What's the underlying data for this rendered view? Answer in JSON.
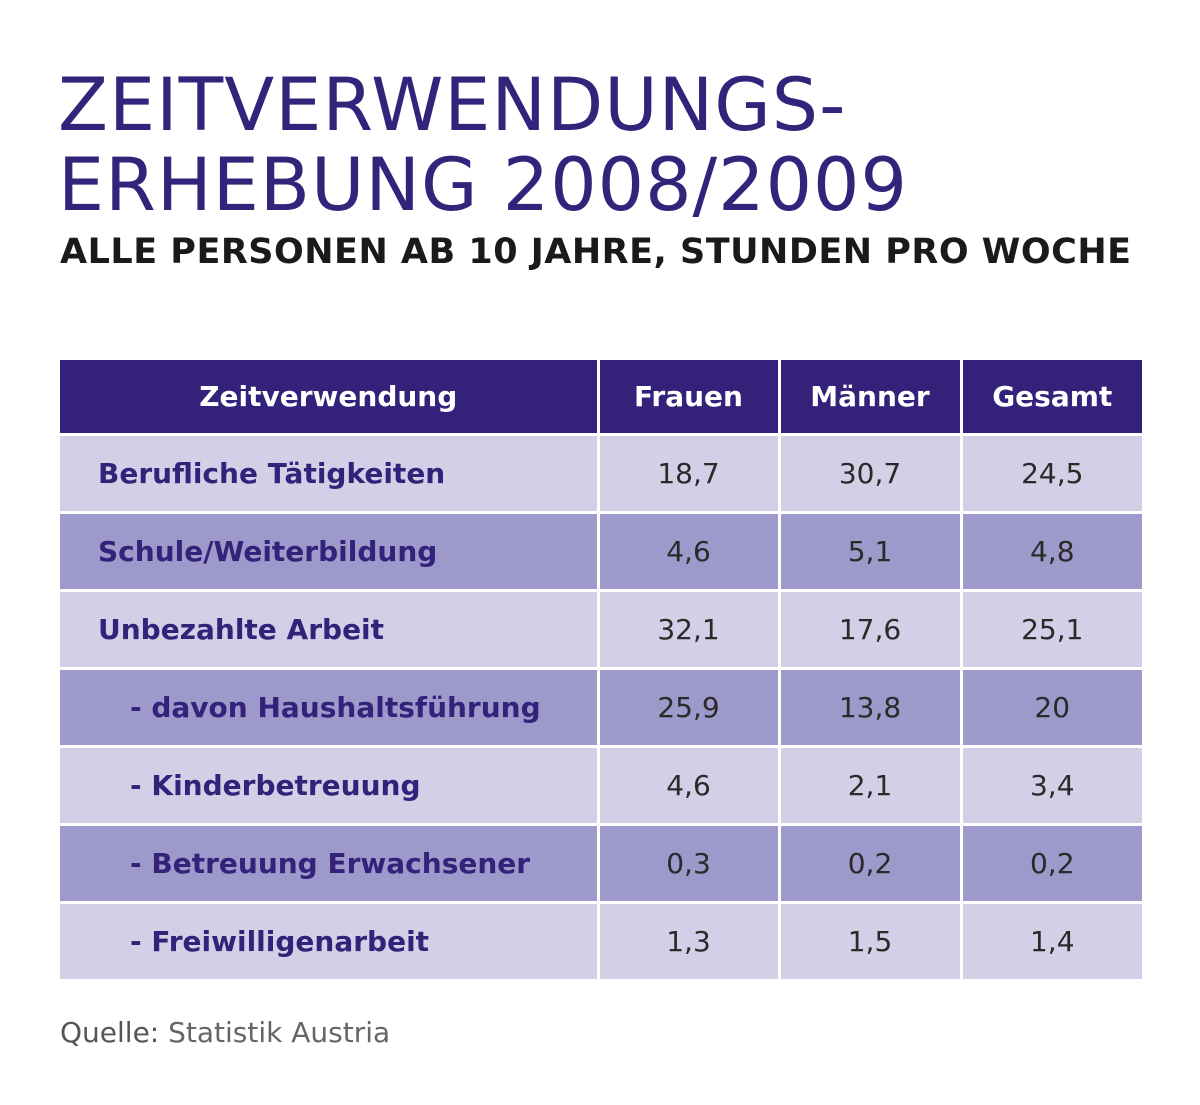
{
  "title_line1": "ZEITVERWENDUNGS-",
  "title_line2": "ERHEBUNG 2008/2009",
  "subtitle": "ALLE PERSONEN AB 10 JAHRE, STUNDEN PRO WOCHE",
  "chart_data": {
    "type": "table",
    "columns": [
      "Zeitverwendung",
      "Frauen",
      "Männer",
      "Gesamt"
    ],
    "rows": [
      {
        "label": "Berufliche Tätigkeiten",
        "sub": false,
        "values": [
          "18,7",
          "30,7",
          "24,5"
        ]
      },
      {
        "label": "Schule/Weiterbildung",
        "sub": false,
        "values": [
          "4,6",
          "5,1",
          "4,8"
        ]
      },
      {
        "label": "Unbezahlte Arbeit",
        "sub": false,
        "values": [
          "32,1",
          "17,6",
          "25,1"
        ]
      },
      {
        "label": "- davon Haushaltsführung",
        "sub": true,
        "values": [
          "25,9",
          "13,8",
          "20"
        ]
      },
      {
        "label": "- Kinderbetreuung",
        "sub": true,
        "values": [
          "4,6",
          "2,1",
          "3,4"
        ]
      },
      {
        "label": "- Betreuung Erwachsener",
        "sub": true,
        "values": [
          "0,3",
          "0,2",
          "0,2"
        ]
      },
      {
        "label": "- Freiwilligenarbeit",
        "sub": true,
        "values": [
          "1,3",
          "1,5",
          "1,4"
        ]
      }
    ]
  },
  "source": {
    "label": "Quelle:",
    "value": "Statistik Austria"
  },
  "colors": {
    "header_bg": "#33217a",
    "row_light": "#d2d0e6",
    "row_dark": "#9d99ca",
    "title": "#33237a"
  }
}
